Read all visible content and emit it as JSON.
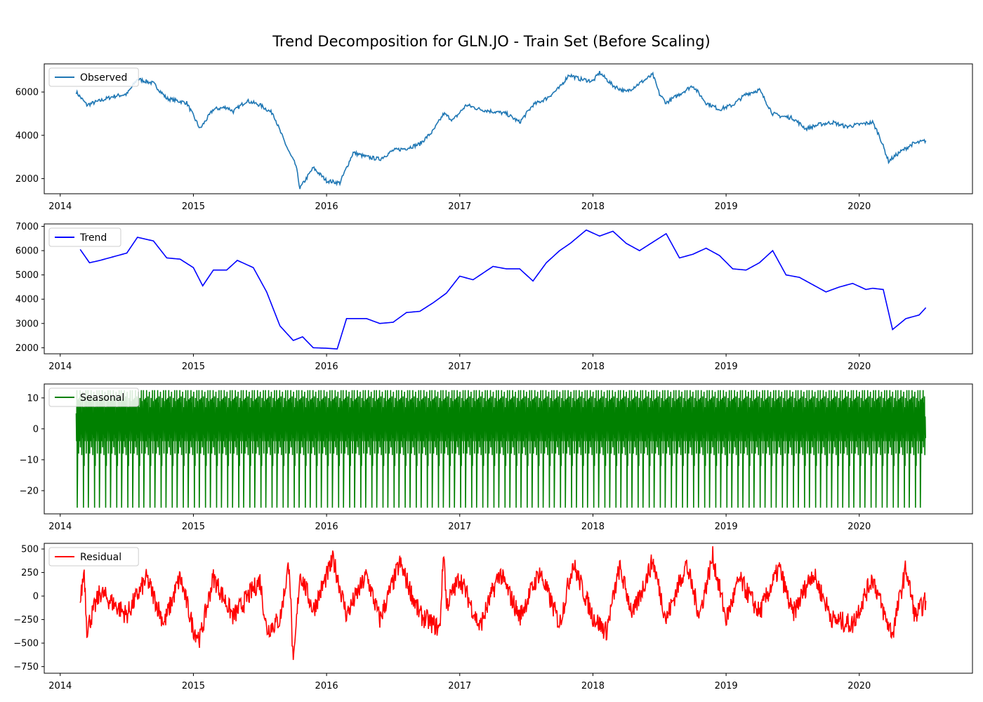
{
  "title": "Trend Decomposition for GLN.JO - Train Set (Before Scaling)",
  "chart_data": [
    {
      "type": "line",
      "name": "observed",
      "legend": "Observed",
      "color": "#1f77b4",
      "x_range": [
        2013.88,
        2020.85
      ],
      "ylim": [
        1300,
        7300
      ],
      "yticks": [
        2000,
        4000,
        6000
      ],
      "ytick_labels": [
        "2000",
        "4000",
        "6000"
      ],
      "xticks": [
        2014,
        2015,
        2016,
        2017,
        2018,
        2019,
        2020
      ],
      "xtick_labels": [
        "2014",
        "2015",
        "2016",
        "2017",
        "2018",
        "2019",
        "2020"
      ],
      "x": [
        2014.12,
        2014.2,
        2014.3,
        2014.4,
        2014.5,
        2014.58,
        2014.7,
        2014.8,
        2014.95,
        2015.05,
        2015.15,
        2015.25,
        2015.3,
        2015.4,
        2015.5,
        2015.6,
        2015.65,
        2015.72,
        2015.77,
        2015.8,
        2015.9,
        2016.0,
        2016.1,
        2016.2,
        2016.3,
        2016.4,
        2016.5,
        2016.6,
        2016.7,
        2016.8,
        2016.88,
        2016.95,
        2017.05,
        2017.15,
        2017.25,
        2017.35,
        2017.45,
        2017.55,
        2017.65,
        2017.75,
        2017.82,
        2017.9,
        2018.0,
        2018.05,
        2018.15,
        2018.25,
        2018.35,
        2018.45,
        2018.5,
        2018.55,
        2018.65,
        2018.75,
        2018.85,
        2018.95,
        2019.05,
        2019.15,
        2019.25,
        2019.35,
        2019.4,
        2019.5,
        2019.6,
        2019.7,
        2019.8,
        2019.9,
        2020.0,
        2020.1,
        2020.15,
        2020.22,
        2020.3,
        2020.4,
        2020.5
      ],
      "y": [
        6000,
        5400,
        5600,
        5800,
        5900,
        6600,
        6400,
        5700,
        5500,
        4300,
        5200,
        5300,
        5100,
        5600,
        5400,
        5000,
        4200,
        3200,
        2600,
        1550,
        2500,
        1900,
        1800,
        3200,
        3000,
        2900,
        3300,
        3400,
        3600,
        4200,
        5000,
        4700,
        5400,
        5200,
        5100,
        5000,
        4600,
        5400,
        5700,
        6200,
        6800,
        6600,
        6500,
        6900,
        6300,
        6000,
        6400,
        6800,
        5900,
        5500,
        5900,
        6300,
        5500,
        5200,
        5400,
        5900,
        6100,
        5000,
        4900,
        4800,
        4300,
        4500,
        4600,
        4400,
        4500,
        4600,
        4000,
        2800,
        3200,
        3600,
        3750
      ]
    },
    {
      "type": "line",
      "name": "trend",
      "legend": "Trend",
      "color": "#0000ff",
      "x_range": [
        2013.88,
        2020.85
      ],
      "ylim": [
        1750,
        7100
      ],
      "yticks": [
        2000,
        3000,
        4000,
        5000,
        6000,
        7000
      ],
      "ytick_labels": [
        "2000",
        "3000",
        "4000",
        "5000",
        "6000",
        "7000"
      ],
      "xticks": [
        2014,
        2015,
        2016,
        2017,
        2018,
        2019,
        2020
      ],
      "xtick_labels": [
        "2014",
        "2015",
        "2016",
        "2017",
        "2018",
        "2019",
        "2020"
      ],
      "x": [
        2014.15,
        2014.22,
        2014.3,
        2014.4,
        2014.5,
        2014.58,
        2014.7,
        2014.8,
        2014.9,
        2015.0,
        2015.07,
        2015.15,
        2015.25,
        2015.33,
        2015.45,
        2015.55,
        2015.65,
        2015.75,
        2015.82,
        2015.9,
        2016.0,
        2016.08,
        2016.15,
        2016.3,
        2016.4,
        2016.5,
        2016.6,
        2016.7,
        2016.8,
        2016.9,
        2017.0,
        2017.1,
        2017.25,
        2017.35,
        2017.45,
        2017.55,
        2017.65,
        2017.75,
        2017.83,
        2017.95,
        2018.05,
        2018.15,
        2018.25,
        2018.35,
        2018.45,
        2018.55,
        2018.65,
        2018.75,
        2018.85,
        2018.95,
        2019.05,
        2019.15,
        2019.25,
        2019.35,
        2019.45,
        2019.55,
        2019.65,
        2019.75,
        2019.85,
        2019.95,
        2020.05,
        2020.1,
        2020.18,
        2020.25,
        2020.35,
        2020.45,
        2020.5
      ],
      "y": [
        6050,
        5500,
        5600,
        5750,
        5900,
        6550,
        6400,
        5700,
        5650,
        5300,
        4550,
        5200,
        5200,
        5600,
        5300,
        4300,
        2900,
        2300,
        2450,
        2000,
        1980,
        1950,
        3200,
        3200,
        3000,
        3050,
        3450,
        3500,
        3850,
        4250,
        4950,
        4800,
        5350,
        5250,
        5250,
        4750,
        5500,
        6000,
        6300,
        6850,
        6600,
        6800,
        6300,
        6000,
        6350,
        6700,
        5700,
        5850,
        6100,
        5800,
        5250,
        5200,
        5500,
        6000,
        5000,
        4900,
        4600,
        4300,
        4500,
        4650,
        4400,
        4450,
        4400,
        2750,
        3200,
        3350,
        3650
      ]
    },
    {
      "type": "line",
      "name": "seasonal",
      "legend": "Seasonal",
      "color": "#008000",
      "x_range": [
        2013.88,
        2020.85
      ],
      "ylim": [
        -27.5,
        14.5
      ],
      "yticks": [
        -20,
        -10,
        0,
        10
      ],
      "ytick_labels": [
        "−20",
        "−10",
        "0",
        "10"
      ],
      "xticks": [
        2014,
        2015,
        2016,
        2017,
        2018,
        2019,
        2020
      ],
      "xtick_labels": [
        "2014",
        "2015",
        "2016",
        "2017",
        "2018",
        "2019",
        "2020"
      ],
      "period_years": 0.0833,
      "start_x": 2014.12,
      "end_x": 2020.5,
      "pattern": [
        5,
        -4,
        12.5,
        -25.5,
        -13,
        9.5,
        2,
        -8,
        10,
        0,
        -4,
        12.5,
        -6,
        8.5,
        -2,
        10.5,
        -8.5,
        4,
        -3,
        12,
        0,
        -25.5,
        7,
        -12,
        10,
        -4,
        5,
        0,
        12.5,
        -8,
        9,
        3
      ]
    },
    {
      "type": "line",
      "name": "residual",
      "legend": "Residual",
      "color": "#ff0000",
      "x_range": [
        2013.88,
        2020.85
      ],
      "ylim": [
        -820,
        560
      ],
      "yticks": [
        -750,
        -500,
        -250,
        0,
        250,
        500
      ],
      "ytick_labels": [
        "−750",
        "−500",
        "−250",
        "0",
        "250",
        "500"
      ],
      "xticks": [
        2014,
        2015,
        2016,
        2017,
        2018,
        2019,
        2020
      ],
      "xtick_labels": [
        "2014",
        "2015",
        "2016",
        "2017",
        "2018",
        "2019",
        "2020"
      ],
      "x": [
        2014.15,
        2014.18,
        2014.2,
        2014.3,
        2014.5,
        2014.65,
        2014.78,
        2014.9,
        2015.0,
        2015.05,
        2015.15,
        2015.3,
        2015.5,
        2015.55,
        2015.65,
        2015.72,
        2015.75,
        2015.8,
        2015.9,
        2016.05,
        2016.15,
        2016.3,
        2016.4,
        2016.55,
        2016.7,
        2016.85,
        2016.88,
        2016.9,
        2017.0,
        2017.15,
        2017.3,
        2017.45,
        2017.6,
        2017.75,
        2017.85,
        2018.0,
        2018.1,
        2018.2,
        2018.3,
        2018.45,
        2018.55,
        2018.7,
        2018.8,
        2018.9,
        2019.0,
        2019.1,
        2019.25,
        2019.4,
        2019.5,
        2019.65,
        2019.8,
        2019.95,
        2020.1,
        2020.2,
        2020.25,
        2020.35,
        2020.42,
        2020.5
      ],
      "y": [
        -80,
        290,
        -350,
        40,
        -200,
        190,
        -290,
        200,
        -350,
        -450,
        200,
        -220,
        170,
        -360,
        -250,
        370,
        -780,
        250,
        -150,
        390,
        -200,
        220,
        -250,
        350,
        -200,
        -350,
        500,
        -100,
        200,
        -330,
        250,
        -220,
        260,
        -300,
        350,
        -220,
        -380,
        300,
        -200,
        380,
        -250,
        340,
        -200,
        420,
        -250,
        180,
        -180,
        300,
        -200,
        250,
        -250,
        -300,
        200,
        -250,
        -400,
        300,
        -220,
        -50
      ]
    }
  ]
}
